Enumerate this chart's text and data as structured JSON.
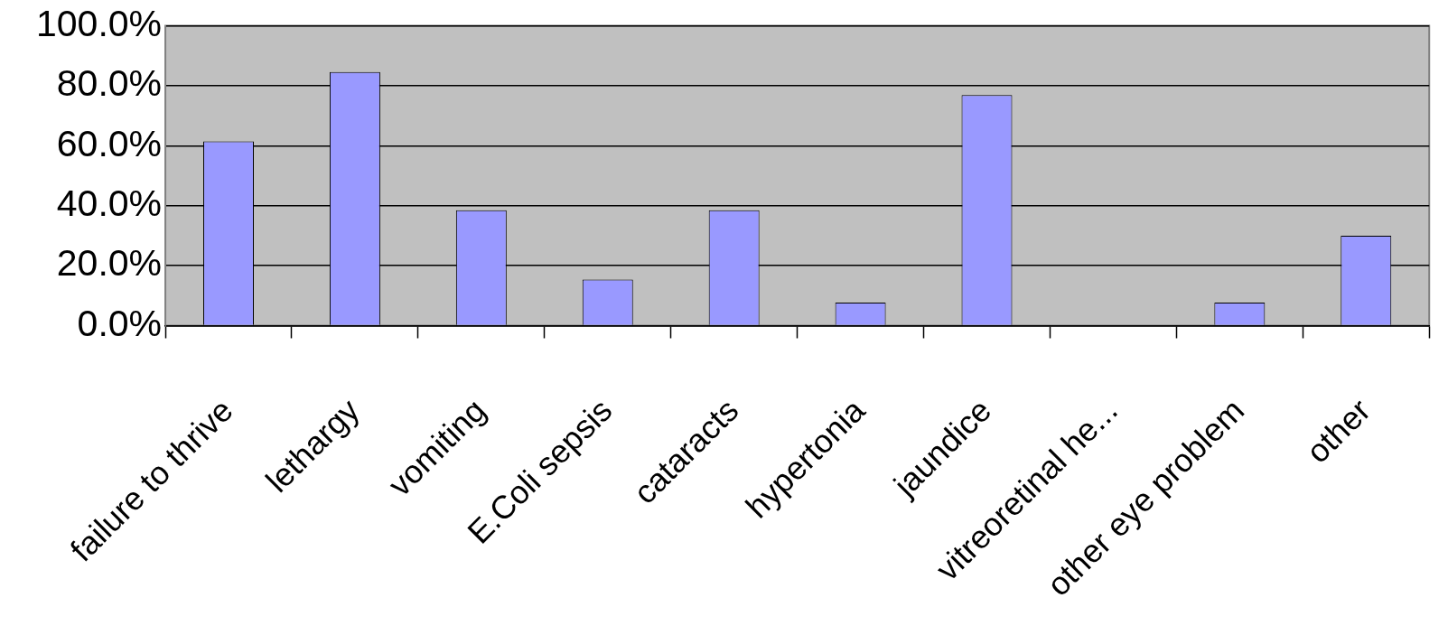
{
  "chart_data": {
    "type": "bar",
    "categories": [
      "failure to thrive",
      "lethargy",
      "vomiting",
      "E.Coli sepsis",
      "cataracts",
      "hypertonia",
      "jaundice",
      "vitreoretinal he...",
      "other eye problem",
      "other"
    ],
    "values": [
      61.5,
      84.6,
      38.5,
      15.4,
      38.5,
      7.7,
      76.9,
      0,
      7.7,
      30
    ],
    "color": "#9999ff",
    "ylim": [
      0,
      100
    ],
    "yticks": [
      {
        "value": 0,
        "label": "0.0%"
      },
      {
        "value": 20,
        "label": "20.0%"
      },
      {
        "value": 40,
        "label": "40.0%"
      },
      {
        "value": 60,
        "label": "60.0%"
      },
      {
        "value": 80,
        "label": "80.0%"
      },
      {
        "value": 100,
        "label": "100.0%"
      }
    ],
    "grid": "y",
    "legend": false
  }
}
